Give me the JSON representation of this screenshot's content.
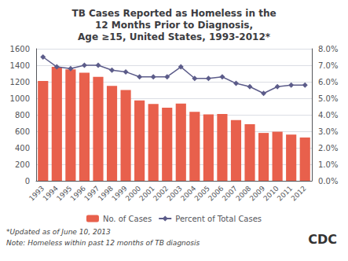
{
  "chart_data": {
    "type": "bar",
    "title": "TB Cases Reported as Homeless in the\n12 Months Prior to Diagnosis,\nAge ≥15, United States, 1993-2012*",
    "categories": [
      "1993",
      "1994",
      "1995",
      "1996",
      "1997",
      "1998",
      "1999",
      "2000",
      "2001",
      "2002",
      "2003",
      "2004",
      "2005",
      "2006",
      "2007",
      "2008",
      "2009",
      "2010",
      "2011",
      "2012"
    ],
    "series": [
      {
        "name": "No. of Cases",
        "type": "bar",
        "color": "#E8604C",
        "values": [
          1210,
          1380,
          1350,
          1310,
          1260,
          1150,
          1100,
          975,
          930,
          885,
          935,
          835,
          805,
          810,
          735,
          685,
          580,
          595,
          560,
          525
        ]
      },
      {
        "name": "Percent of Total Cases",
        "type": "line",
        "axis": "y2",
        "color": "#5C5C8A",
        "marker": "diamond",
        "line_style": "solid",
        "values": [
          0.075,
          0.069,
          0.068,
          0.07,
          0.07,
          0.067,
          0.066,
          0.063,
          0.063,
          0.063,
          0.069,
          0.062,
          0.062,
          0.063,
          0.059,
          0.057,
          0.053,
          0.057,
          0.058,
          0.058
        ]
      }
    ],
    "ylim": [
      0,
      1600
    ],
    "yticks": [
      0,
      200,
      400,
      600,
      800,
      1000,
      1200,
      1400,
      1600
    ],
    "y2lim": [
      0.0,
      0.08
    ],
    "y2ticks": [
      {
        "value": 0.0,
        "label": "0.0%"
      },
      {
        "value": 0.01,
        "label": "1.0%"
      },
      {
        "value": 0.02,
        "label": "2.0%"
      },
      {
        "value": 0.03,
        "label": "3.0%"
      },
      {
        "value": 0.04,
        "label": "4.0%"
      },
      {
        "value": 0.05,
        "label": "5.0%"
      },
      {
        "value": 0.06,
        "label": "6.0%"
      },
      {
        "value": 0.07,
        "label": "7.0%"
      },
      {
        "value": 0.08,
        "label": "8.0%"
      }
    ],
    "grid": true,
    "legend": "bottom",
    "annotations": [
      "*Updated as of June 10, 2013",
      "Note: Homeless within past 12 months of TB diagnosis",
      "CDC"
    ]
  }
}
